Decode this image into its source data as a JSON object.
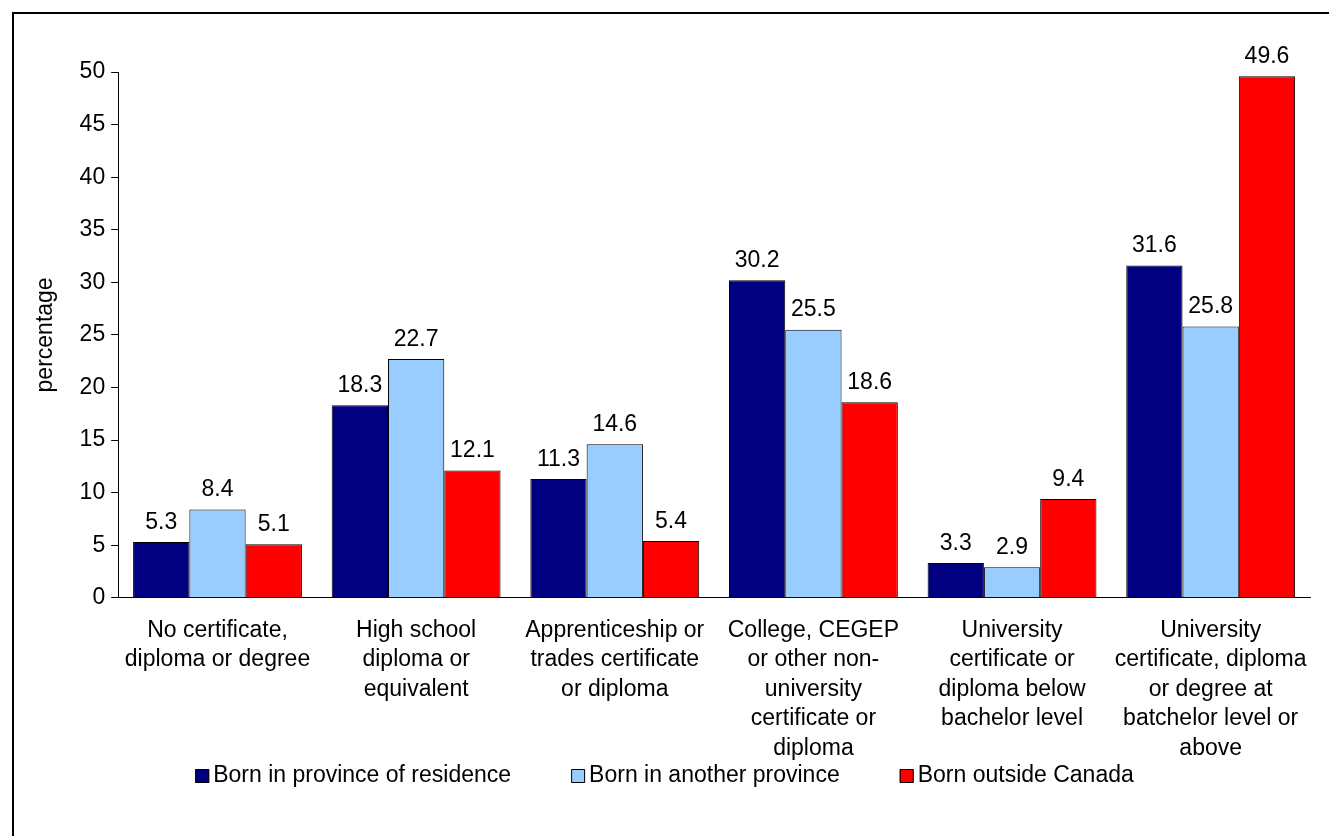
{
  "chart_data": {
    "type": "bar",
    "ylabel": "percentage",
    "categories": [
      "No certificate, diploma or degree",
      "High school diploma or equivalent",
      "Apprenticeship or trades certificate or diploma",
      "College, CEGEP or other non-university certificate or diploma",
      "University certificate or diploma below bachelor level",
      "University certificate, diploma or degree at batchelor level or above"
    ],
    "series": [
      {
        "name": "Born in province of residence",
        "color": "#000080",
        "values": [
          5.3,
          18.3,
          11.3,
          30.2,
          3.3,
          31.6
        ]
      },
      {
        "name": "Born in another province",
        "color": "#99ccff",
        "values": [
          8.4,
          22.7,
          14.6,
          25.5,
          2.9,
          25.8
        ]
      },
      {
        "name": "Born outside Canada",
        "color": "#ff0000",
        "values": [
          5.1,
          12.1,
          5.4,
          18.6,
          9.4,
          49.6
        ]
      }
    ],
    "ylim": [
      0,
      50
    ],
    "yticks": [
      0,
      5,
      10,
      15,
      20,
      25,
      30,
      35,
      40,
      45,
      50
    ],
    "grid": false,
    "legend": "bottom",
    "data_labels": true
  }
}
